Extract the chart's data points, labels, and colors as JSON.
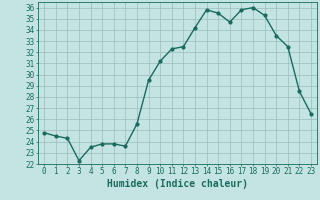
{
  "x": [
    0,
    1,
    2,
    3,
    4,
    5,
    6,
    7,
    8,
    9,
    10,
    11,
    12,
    13,
    14,
    15,
    16,
    17,
    18,
    19,
    20,
    21,
    22,
    23
  ],
  "y": [
    24.8,
    24.5,
    24.3,
    22.3,
    23.5,
    23.8,
    23.8,
    23.6,
    25.6,
    29.5,
    31.2,
    32.3,
    32.5,
    34.2,
    35.8,
    35.5,
    34.7,
    35.8,
    36.0,
    35.3,
    33.5,
    32.5,
    28.5,
    26.5
  ],
  "line_color": "#1a6b5e",
  "marker": "o",
  "markersize": 2.0,
  "bg_color": "#c4e4e4",
  "grid_color": "#9abcbc",
  "xlabel": "Humidex (Indice chaleur)",
  "ylim": [
    22,
    36.5
  ],
  "xlim": [
    -0.5,
    23.5
  ],
  "yticks": [
    22,
    23,
    24,
    25,
    26,
    27,
    28,
    29,
    30,
    31,
    32,
    33,
    34,
    35,
    36
  ],
  "xticks": [
    0,
    1,
    2,
    3,
    4,
    5,
    6,
    7,
    8,
    9,
    10,
    11,
    12,
    13,
    14,
    15,
    16,
    17,
    18,
    19,
    20,
    21,
    22,
    23
  ],
  "tick_label_fontsize": 5.5,
  "xlabel_fontsize": 7.0,
  "linewidth": 1.0
}
